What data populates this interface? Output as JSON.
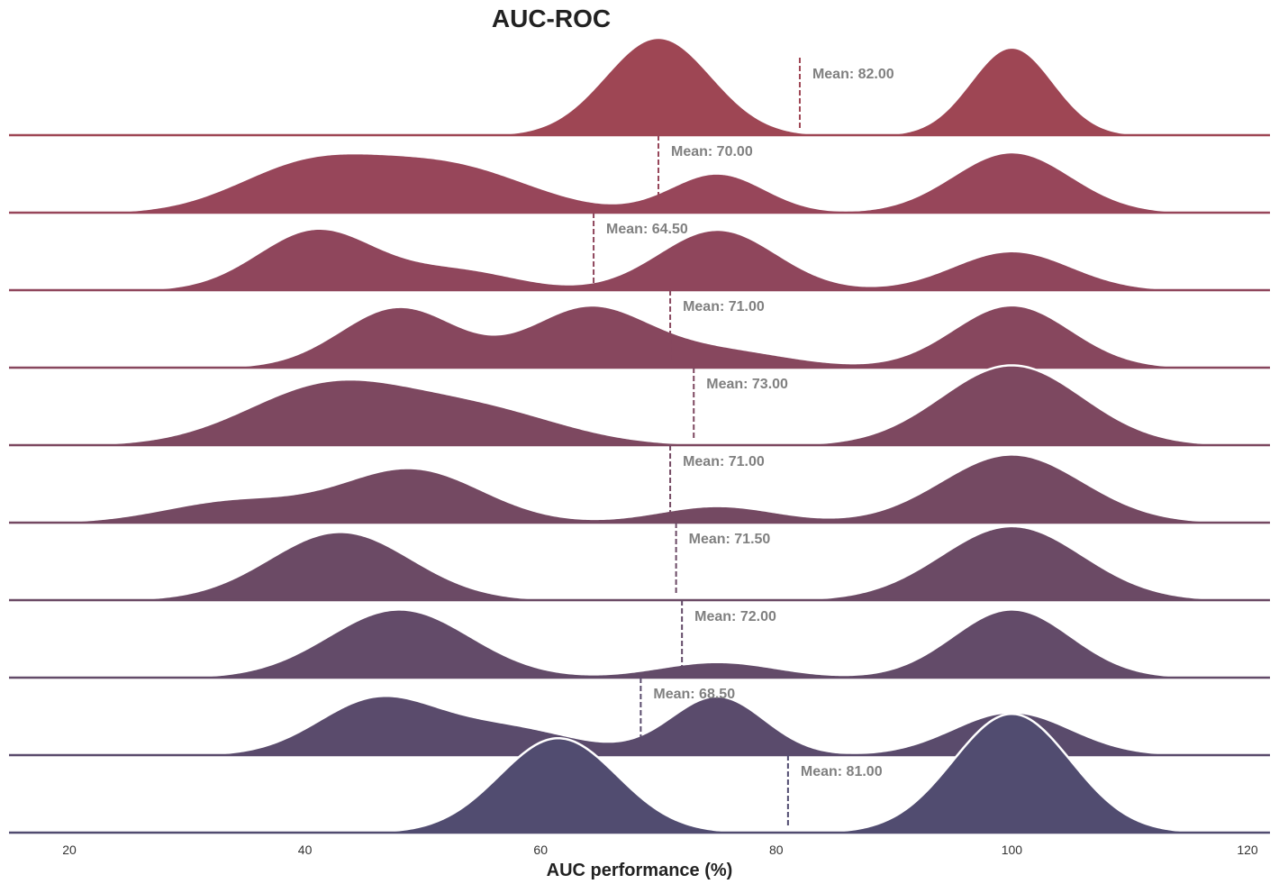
{
  "chart_data": {
    "type": "area",
    "subtype": "ridgeline",
    "title": "AUC-ROC",
    "xlabel": "AUC performance (%)",
    "ylabel": "",
    "xlim": [
      15,
      122
    ],
    "xticks": [
      20,
      40,
      60,
      80,
      100,
      120
    ],
    "grid": false,
    "legend": "none",
    "mean_label_prefix": "Mean: ",
    "colors": [
      "#9e4654",
      "#97465a",
      "#8f465c",
      "#87475e",
      "#7d4860",
      "#744962",
      "#6b4a65",
      "#634b69",
      "#5a4b6c",
      "#514c70"
    ],
    "series": [
      {
        "mean": 82.0,
        "components": [
          [
            70,
            4.5,
            1.0
          ],
          [
            100,
            3.5,
            0.9
          ]
        ]
      },
      {
        "mean": 70.0,
        "components": [
          [
            40,
            6,
            0.45
          ],
          [
            52,
            7,
            0.48
          ],
          [
            75,
            4,
            0.4
          ],
          [
            100,
            5,
            0.62
          ]
        ]
      },
      {
        "mean": 64.5,
        "components": [
          [
            41,
            5,
            0.62
          ],
          [
            53,
            5,
            0.2
          ],
          [
            75,
            5,
            0.62
          ],
          [
            100,
            5,
            0.4
          ]
        ]
      },
      {
        "mean": 71.0,
        "components": [
          [
            48,
            5,
            0.62
          ],
          [
            64,
            5,
            0.6
          ],
          [
            75,
            6,
            0.18
          ],
          [
            100,
            5,
            0.64
          ]
        ]
      },
      {
        "mean": 73.0,
        "components": [
          [
            42,
            7,
            0.6
          ],
          [
            55,
            7,
            0.34
          ],
          [
            100,
            6,
            0.82
          ]
        ]
      },
      {
        "mean": 71.0,
        "components": [
          [
            34,
            6,
            0.22
          ],
          [
            49,
            6,
            0.55
          ],
          [
            75,
            5,
            0.17
          ],
          [
            100,
            6,
            0.7
          ]
        ]
      },
      {
        "mean": 71.5,
        "components": [
          [
            43,
            6,
            0.7
          ],
          [
            100,
            6,
            0.76
          ]
        ]
      },
      {
        "mean": 72.0,
        "components": [
          [
            48,
            6,
            0.7
          ],
          [
            75,
            5,
            0.16
          ],
          [
            100,
            5,
            0.7
          ]
        ]
      },
      {
        "mean": 68.5,
        "components": [
          [
            46,
            5,
            0.55
          ],
          [
            57,
            6,
            0.28
          ],
          [
            75,
            4,
            0.6
          ],
          [
            100,
            5,
            0.44
          ]
        ]
      },
      {
        "mean": 81.0,
        "components": [
          [
            61.5,
            5,
            0.97
          ],
          [
            100,
            5,
            1.22
          ]
        ]
      }
    ]
  }
}
